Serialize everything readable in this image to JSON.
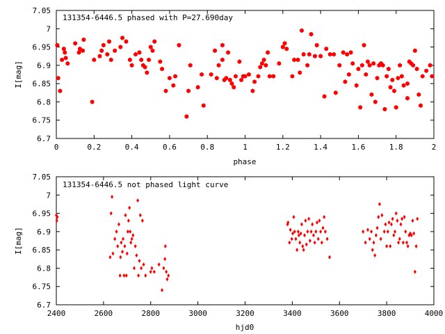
{
  "chart_data": [
    {
      "type": "scatter",
      "title": "131354-6446.5 phased with P=27.690day",
      "xlabel": "phase",
      "ylabel": "I[mag]",
      "xlim": [
        0,
        2
      ],
      "ylim": [
        7.05,
        6.7
      ],
      "y_inverted": true,
      "grid": false,
      "color": "#ff0000",
      "marker": "filled-hexagon",
      "xticks": [
        0,
        0.2,
        0.4,
        0.6,
        0.8,
        1,
        1.2,
        1.4,
        1.6,
        1.8,
        2
      ],
      "xtick_labels": [
        "0",
        "0.2",
        "0.4",
        "0.6",
        "0.8",
        "1",
        "1.2",
        "1.4",
        "1.6",
        "1.8",
        "2"
      ],
      "yticks": [
        6.7,
        6.75,
        6.8,
        6.85,
        6.9,
        6.95,
        7,
        7.05
      ],
      "ytick_labels": [
        "6.7",
        "6.75",
        "6.8",
        "6.85",
        "6.9",
        "6.95",
        "7",
        "7.05"
      ],
      "points": [
        [
          0.005,
          6.955
        ],
        [
          0.01,
          6.865
        ],
        [
          0.02,
          6.83
        ],
        [
          0.03,
          6.915
        ],
        [
          0.04,
          6.945
        ],
        [
          0.045,
          6.935
        ],
        [
          0.05,
          6.92
        ],
        [
          0.06,
          6.905
        ],
        [
          0.1,
          6.96
        ],
        [
          0.12,
          6.935
        ],
        [
          0.125,
          6.945
        ],
        [
          0.14,
          6.94
        ],
        [
          0.145,
          6.97
        ],
        [
          0.19,
          6.8
        ],
        [
          0.2,
          6.915
        ],
        [
          0.23,
          6.925
        ],
        [
          0.24,
          6.94
        ],
        [
          0.25,
          6.955
        ],
        [
          0.27,
          6.93
        ],
        [
          0.28,
          6.965
        ],
        [
          0.29,
          6.915
        ],
        [
          0.31,
          6.94
        ],
        [
          0.34,
          6.95
        ],
        [
          0.35,
          6.975
        ],
        [
          0.37,
          6.965
        ],
        [
          0.39,
          6.915
        ],
        [
          0.4,
          6.9
        ],
        [
          0.42,
          6.93
        ],
        [
          0.44,
          6.935
        ],
        [
          0.45,
          6.915
        ],
        [
          0.46,
          6.9
        ],
        [
          0.47,
          6.895
        ],
        [
          0.48,
          6.88
        ],
        [
          0.49,
          6.915
        ],
        [
          0.5,
          6.95
        ],
        [
          0.51,
          6.94
        ],
        [
          0.52,
          6.965
        ],
        [
          0.55,
          6.91
        ],
        [
          0.56,
          6.89
        ],
        [
          0.58,
          6.83
        ],
        [
          0.6,
          6.865
        ],
        [
          0.62,
          6.845
        ],
        [
          0.63,
          6.87
        ],
        [
          0.65,
          6.955
        ],
        [
          0.69,
          6.76
        ],
        [
          0.7,
          6.83
        ],
        [
          0.71,
          6.9
        ],
        [
          0.75,
          6.84
        ],
        [
          0.77,
          6.875
        ],
        [
          0.78,
          6.79
        ],
        [
          0.82,
          6.875
        ],
        [
          0.84,
          6.94
        ],
        [
          0.85,
          6.865
        ],
        [
          0.86,
          6.9
        ],
        [
          0.88,
          6.915
        ],
        [
          0.88,
          6.955
        ],
        [
          0.89,
          6.86
        ],
        [
          0.9,
          6.865
        ],
        [
          0.91,
          6.935
        ],
        [
          0.92,
          6.86
        ],
        [
          0.93,
          6.85
        ],
        [
          0.94,
          6.84
        ],
        [
          0.95,
          6.87
        ],
        [
          0.97,
          6.91
        ],
        [
          0.98,
          6.86
        ],
        [
          0.99,
          6.87
        ],
        [
          1.0,
          6.87
        ],
        [
          1.02,
          6.875
        ],
        [
          1.04,
          6.83
        ],
        [
          1.05,
          6.855
        ],
        [
          1.07,
          6.87
        ],
        [
          1.08,
          6.895
        ],
        [
          1.09,
          6.905
        ],
        [
          1.1,
          6.915
        ],
        [
          1.11,
          6.9
        ],
        [
          1.12,
          6.935
        ],
        [
          1.13,
          6.87
        ],
        [
          1.15,
          6.87
        ],
        [
          1.18,
          6.905
        ],
        [
          1.2,
          6.95
        ],
        [
          1.21,
          6.96
        ],
        [
          1.22,
          6.945
        ],
        [
          1.25,
          6.87
        ],
        [
          1.26,
          6.915
        ],
        [
          1.28,
          6.915
        ],
        [
          1.29,
          6.88
        ],
        [
          1.3,
          6.995
        ],
        [
          1.31,
          6.93
        ],
        [
          1.33,
          6.9
        ],
        [
          1.34,
          6.93
        ],
        [
          1.35,
          6.985
        ],
        [
          1.37,
          6.925
        ],
        [
          1.38,
          6.955
        ],
        [
          1.4,
          6.925
        ],
        [
          1.42,
          6.815
        ],
        [
          1.43,
          6.945
        ],
        [
          1.45,
          6.93
        ],
        [
          1.47,
          6.93
        ],
        [
          1.48,
          6.825
        ],
        [
          1.5,
          6.9
        ],
        [
          1.52,
          6.935
        ],
        [
          1.53,
          6.855
        ],
        [
          1.54,
          6.93
        ],
        [
          1.55,
          6.875
        ],
        [
          1.56,
          6.935
        ],
        [
          1.57,
          6.905
        ],
        [
          1.59,
          6.845
        ],
        [
          1.6,
          6.89
        ],
        [
          1.61,
          6.785
        ],
        [
          1.62,
          6.9
        ],
        [
          1.63,
          6.955
        ],
        [
          1.64,
          6.875
        ],
        [
          1.65,
          6.91
        ],
        [
          1.66,
          6.9
        ],
        [
          1.67,
          6.82
        ],
        [
          1.68,
          6.905
        ],
        [
          1.69,
          6.8
        ],
        [
          1.7,
          6.865
        ],
        [
          1.71,
          6.9
        ],
        [
          1.72,
          6.905
        ],
        [
          1.73,
          6.9
        ],
        [
          1.74,
          6.78
        ],
        [
          1.75,
          6.87
        ],
        [
          1.76,
          6.89
        ],
        [
          1.77,
          6.84
        ],
        [
          1.78,
          6.86
        ],
        [
          1.79,
          6.83
        ],
        [
          1.8,
          6.785
        ],
        [
          1.81,
          6.865
        ],
        [
          1.82,
          6.9
        ],
        [
          1.83,
          6.87
        ],
        [
          1.84,
          6.845
        ],
        [
          1.86,
          6.85
        ],
        [
          1.86,
          6.81
        ],
        [
          1.87,
          6.91
        ],
        [
          1.88,
          6.905
        ],
        [
          1.89,
          6.9
        ],
        [
          1.9,
          6.94
        ],
        [
          1.91,
          6.89
        ],
        [
          1.92,
          6.82
        ],
        [
          1.93,
          6.79
        ],
        [
          1.94,
          6.87
        ],
        [
          1.96,
          6.885
        ],
        [
          1.98,
          6.9
        ],
        [
          1.99,
          6.87
        ]
      ]
    },
    {
      "type": "scatter",
      "title": "131354-6446.5 not phased light curve",
      "xlabel": "hjd0",
      "ylabel": "I[mag]",
      "xlim": [
        2400,
        4000
      ],
      "ylim": [
        7.05,
        6.7
      ],
      "y_inverted": true,
      "grid": false,
      "color": "#ff0000",
      "marker": "small-diamond",
      "xticks": [
        2400,
        2600,
        2800,
        3000,
        3200,
        3400,
        3600,
        3800,
        4000
      ],
      "xtick_labels": [
        "2400",
        "2600",
        "2800",
        "3000",
        "3200",
        "3400",
        "3600",
        "3800",
        "4000"
      ],
      "yticks": [
        6.7,
        6.75,
        6.8,
        6.85,
        6.9,
        6.95,
        7,
        7.05
      ],
      "ytick_labels": [
        "6.7",
        "6.75",
        "6.8",
        "6.85",
        "6.9",
        "6.95",
        "7",
        "7.05"
      ],
      "points": [
        [
          2400,
          6.945
        ],
        [
          2402,
          6.93
        ],
        [
          2404,
          6.94
        ],
        [
          2628,
          6.83
        ],
        [
          2632,
          6.95
        ],
        [
          2636,
          6.995
        ],
        [
          2640,
          6.84
        ],
        [
          2648,
          6.88
        ],
        [
          2655,
          6.9
        ],
        [
          2660,
          6.86
        ],
        [
          2665,
          6.92
        ],
        [
          2670,
          6.78
        ],
        [
          2672,
          6.83
        ],
        [
          2675,
          6.87
        ],
        [
          2680,
          6.845
        ],
        [
          2683,
          6.88
        ],
        [
          2687,
          6.78
        ],
        [
          2690,
          6.86
        ],
        [
          2693,
          6.945
        ],
        [
          2697,
          6.78
        ],
        [
          2700,
          6.84
        ],
        [
          2703,
          6.9
        ],
        [
          2706,
          6.93
        ],
        [
          2710,
          6.965
        ],
        [
          2713,
          6.9
        ],
        [
          2716,
          6.87
        ],
        [
          2720,
          6.88
        ],
        [
          2725,
          6.89
        ],
        [
          2730,
          6.8
        ],
        [
          2735,
          6.86
        ],
        [
          2740,
          6.835
        ],
        [
          2745,
          6.985
        ],
        [
          2748,
          6.78
        ],
        [
          2752,
          6.82
        ],
        [
          2756,
          6.945
        ],
        [
          2760,
          6.8
        ],
        [
          2765,
          6.93
        ],
        [
          2770,
          6.81
        ],
        [
          2778,
          6.78
        ],
        [
          2800,
          6.79
        ],
        [
          2805,
          6.8
        ],
        [
          2815,
          6.79
        ],
        [
          2835,
          6.81
        ],
        [
          2848,
          6.74
        ],
        [
          2855,
          6.8
        ],
        [
          2860,
          6.825
        ],
        [
          2862,
          6.86
        ],
        [
          2866,
          6.79
        ],
        [
          2870,
          6.77
        ],
        [
          2875,
          6.78
        ],
        [
          3380,
          6.92
        ],
        [
          3382,
          6.925
        ],
        [
          3388,
          6.87
        ],
        [
          3392,
          6.905
        ],
        [
          3398,
          6.88
        ],
        [
          3402,
          6.895
        ],
        [
          3406,
          6.94
        ],
        [
          3410,
          6.9
        ],
        [
          3415,
          6.88
        ],
        [
          3420,
          6.85
        ],
        [
          3425,
          6.9
        ],
        [
          3428,
          6.89
        ],
        [
          3432,
          6.87
        ],
        [
          3436,
          6.895
        ],
        [
          3440,
          6.92
        ],
        [
          3444,
          6.86
        ],
        [
          3448,
          6.85
        ],
        [
          3452,
          6.89
        ],
        [
          3456,
          6.93
        ],
        [
          3460,
          6.865
        ],
        [
          3465,
          6.9
        ],
        [
          3470,
          6.935
        ],
        [
          3475,
          6.875
        ],
        [
          3480,
          6.9
        ],
        [
          3485,
          6.92
        ],
        [
          3490,
          6.89
        ],
        [
          3495,
          6.87
        ],
        [
          3500,
          6.9
        ],
        [
          3505,
          6.925
        ],
        [
          3510,
          6.88
        ],
        [
          3515,
          6.93
        ],
        [
          3520,
          6.9
        ],
        [
          3525,
          6.87
        ],
        [
          3530,
          6.91
        ],
        [
          3535,
          6.94
        ],
        [
          3540,
          6.9
        ],
        [
          3548,
          6.88
        ],
        [
          3558,
          6.83
        ],
        [
          3700,
          6.9
        ],
        [
          3710,
          6.87
        ],
        [
          3720,
          6.905
        ],
        [
          3728,
          6.88
        ],
        [
          3735,
          6.9
        ],
        [
          3740,
          6.85
        ],
        [
          3745,
          6.87
        ],
        [
          3750,
          6.835
        ],
        [
          3755,
          6.89
        ],
        [
          3760,
          6.91
        ],
        [
          3765,
          6.94
        ],
        [
          3770,
          6.975
        ],
        [
          3775,
          6.88
        ],
        [
          3780,
          6.945
        ],
        [
          3790,
          6.9
        ],
        [
          3795,
          6.92
        ],
        [
          3800,
          6.86
        ],
        [
          3805,
          6.9
        ],
        [
          3810,
          6.925
        ],
        [
          3815,
          6.86
        ],
        [
          3820,
          6.92
        ],
        [
          3825,
          6.935
        ],
        [
          3830,
          6.89
        ],
        [
          3835,
          6.9
        ],
        [
          3840,
          6.95
        ],
        [
          3845,
          6.93
        ],
        [
          3850,
          6.87
        ],
        [
          3855,
          6.88
        ],
        [
          3860,
          6.92
        ],
        [
          3865,
          6.935
        ],
        [
          3870,
          6.87
        ],
        [
          3875,
          6.94
        ],
        [
          3880,
          6.9
        ],
        [
          3885,
          6.87
        ],
        [
          3890,
          6.86
        ],
        [
          3895,
          6.89
        ],
        [
          3900,
          6.895
        ],
        [
          3905,
          6.89
        ],
        [
          3910,
          6.93
        ],
        [
          3915,
          6.895
        ],
        [
          3920,
          6.79
        ],
        [
          3925,
          6.86
        ],
        [
          3930,
          6.935
        ]
      ]
    }
  ]
}
